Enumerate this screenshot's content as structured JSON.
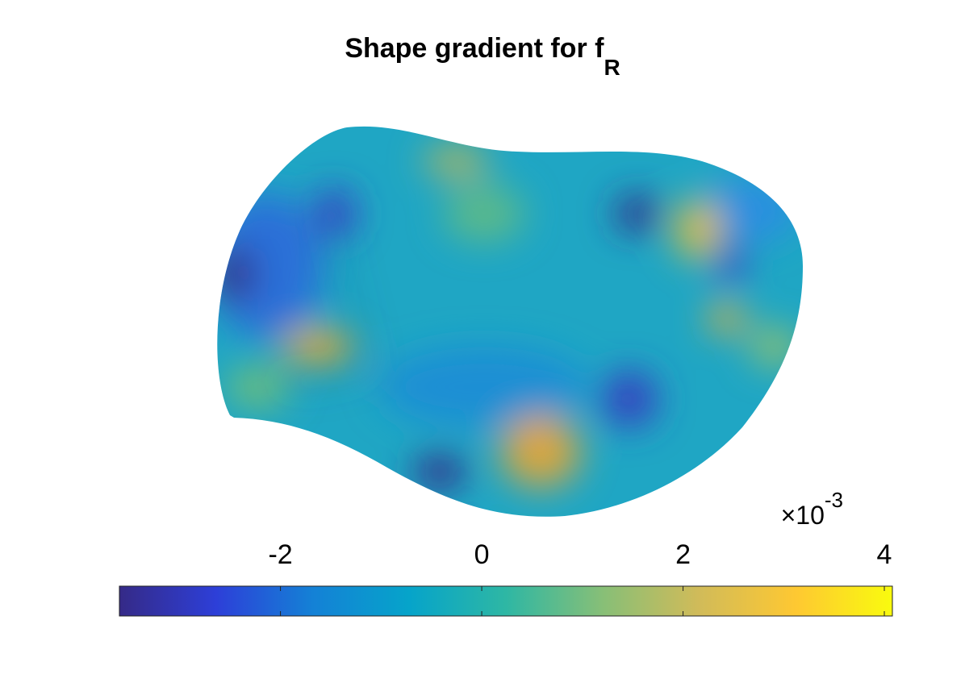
{
  "chart_data": {
    "type": "colorbar-surface",
    "title": "Shape gradient for f",
    "title_subscript": "R",
    "clim": [
      -3.6,
      4.08
    ],
    "ticks": [
      -2,
      0,
      2,
      4
    ],
    "multiplier": {
      "base": "×10",
      "power": "-3"
    },
    "colormap": [
      "#352a87",
      "#2d3fd8",
      "#1481d6",
      "#06a4ca",
      "#2eb7a4",
      "#87bf77",
      "#d1bb59",
      "#fec832",
      "#f9fb0e"
    ]
  }
}
